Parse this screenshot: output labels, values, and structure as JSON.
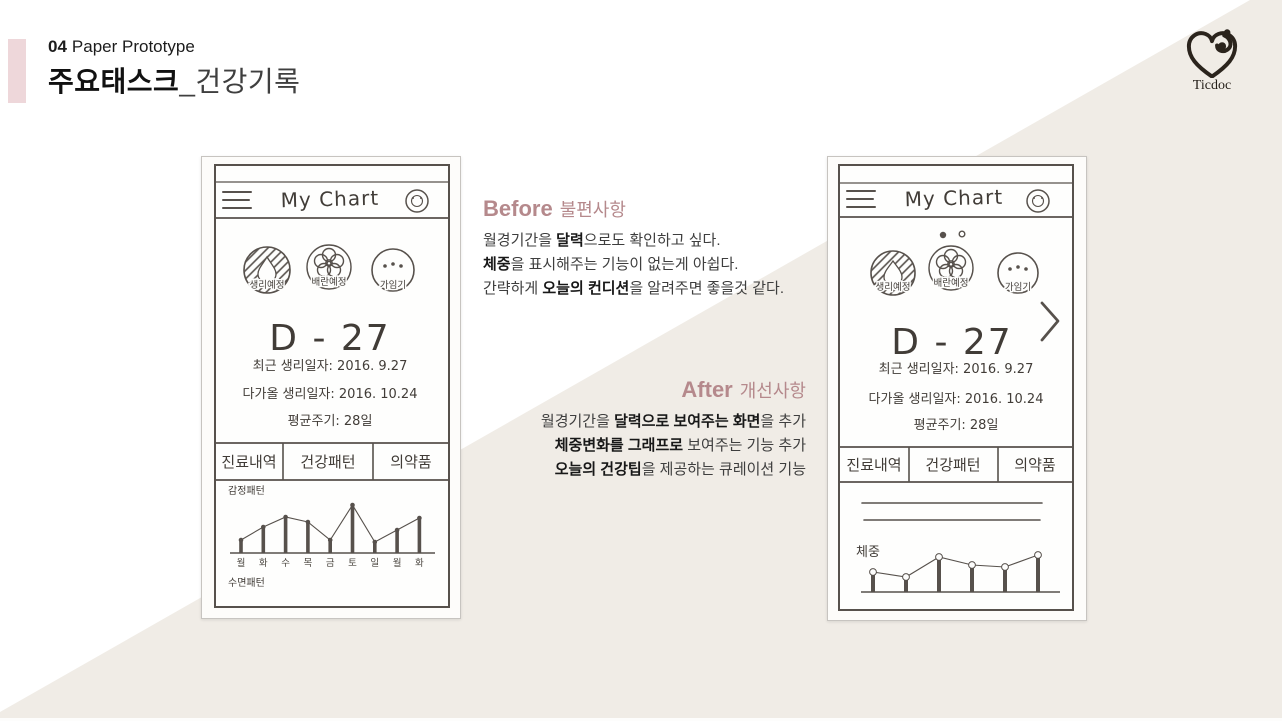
{
  "page": {
    "background": "#ffffff",
    "beige_diagonal": "#f0ece6",
    "accent_pink": "#eed7da",
    "mauve_heading": "#b5898c"
  },
  "header": {
    "kicker_number": "04",
    "kicker_label": "Paper Prototype",
    "title_primary": "주요태스크",
    "title_secondary": "_건강기록"
  },
  "logo": {
    "text": "Ticdoc"
  },
  "before": {
    "heading_en": "Before",
    "heading_ko": "불편사항",
    "lines": [
      {
        "pre": "월경기간을 ",
        "bold": "달력",
        "post": "으로도 확인하고 싶다."
      },
      {
        "pre": "",
        "bold": "체중",
        "post": "을 표시해주는 기능이 없는게 아쉽다."
      },
      {
        "pre": "간략하게 ",
        "bold": "오늘의 컨디션",
        "post": "을 알려주면 좋을것 같다."
      }
    ]
  },
  "after": {
    "heading_en": "After",
    "heading_ko": "개선사항",
    "lines": [
      {
        "pre": "월경기간을 ",
        "bold": "달력으로 보여주는 화면",
        "post": "을 추가"
      },
      {
        "pre": "",
        "bold": "체중변화를 그래프로",
        "post": " 보여주는 기능 추가"
      },
      {
        "pre": "",
        "bold": "오늘의 건강팁",
        "post": "을 제공하는 큐레이션 기능"
      }
    ]
  },
  "phone_before": {
    "app_title": "My Chart",
    "icon_labels": [
      "생리예정",
      "배란예정",
      "가임기"
    ],
    "dday": "D - 27",
    "info_lines": [
      "최근 생리일자: 2016. 9.27",
      "다가올 생리일자: 2016. 10.24",
      "평균주기: 28일"
    ],
    "tabs": [
      "진료내역",
      "건강패턴",
      "의약품"
    ],
    "chart": {
      "type": "line-bar",
      "label": "감정패턴",
      "categories": [
        "월",
        "화",
        "수",
        "목",
        "금",
        "토",
        "일",
        "월",
        "화"
      ],
      "values": [
        13,
        26,
        36,
        31,
        13,
        48,
        11,
        23,
        35
      ]
    },
    "bottom_label": "수면패턴"
  },
  "phone_after": {
    "app_title": "My Chart",
    "icon_labels": [
      "생리예정",
      "배란예정",
      "가임기"
    ],
    "dday": "D - 27",
    "info_lines": [
      "최근 생리일자: 2016. 9.27",
      "다가올 생리일자: 2016. 10.24",
      "평균주기: 28일"
    ],
    "tabs": [
      "진료내역",
      "건강패턴",
      "의약품"
    ],
    "chart": {
      "type": "line-bar",
      "label": "체중",
      "categories": [
        "",
        "",
        "",
        "",
        "",
        ""
      ],
      "values": [
        20,
        15,
        35,
        27,
        25,
        37
      ]
    }
  }
}
